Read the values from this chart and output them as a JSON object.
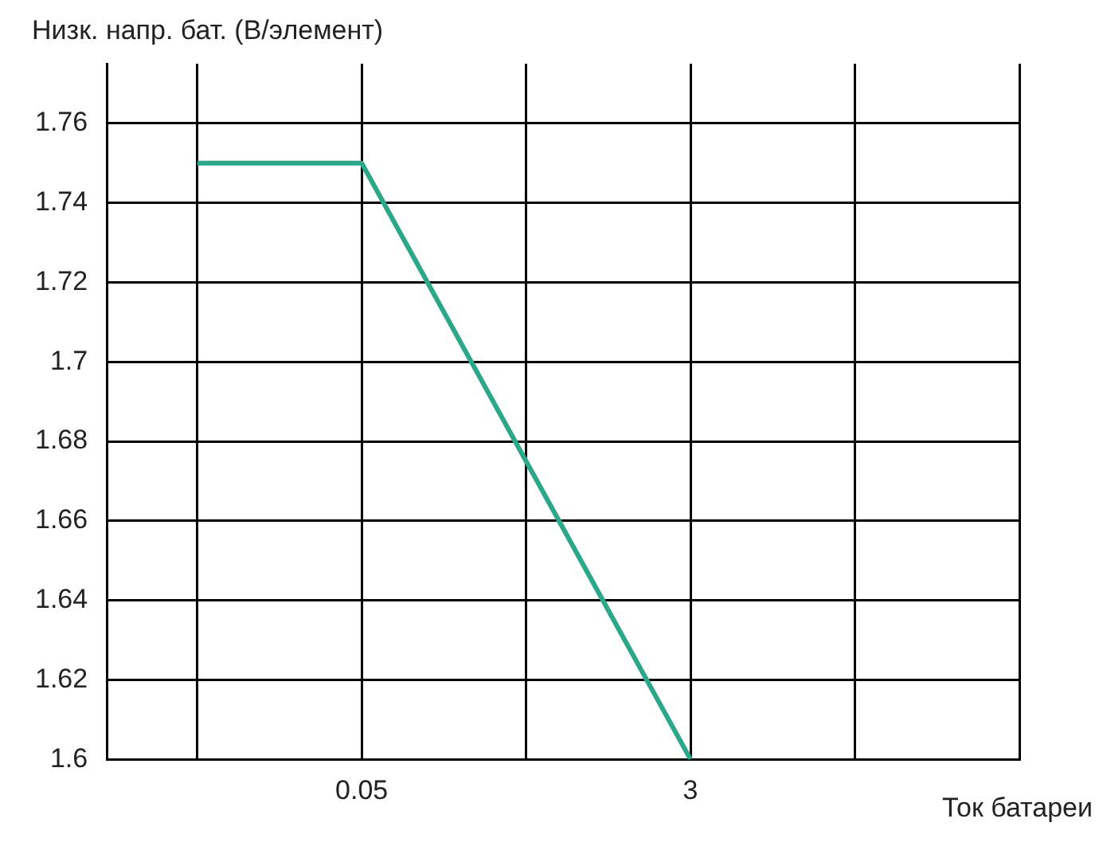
{
  "chart_data": {
    "type": "line",
    "ylabel": "Низк. напр. бат. (В/элемент)",
    "xlabel": "Ток батареи",
    "categories": [
      null,
      "0.05",
      null,
      "3",
      null,
      null
    ],
    "series": [
      {
        "color": "#2aa889",
        "values": [
          1.75,
          1.75,
          1.675,
          1.6,
          null,
          null
        ]
      }
    ],
    "ylim": [
      1.6,
      1.775
    ],
    "yticks": [
      1.6,
      1.62,
      1.64,
      1.66,
      1.68,
      1.7,
      1.72,
      1.74,
      1.76
    ],
    "grid": true,
    "legend": false,
    "marker": "none",
    "line_style": "solid"
  }
}
